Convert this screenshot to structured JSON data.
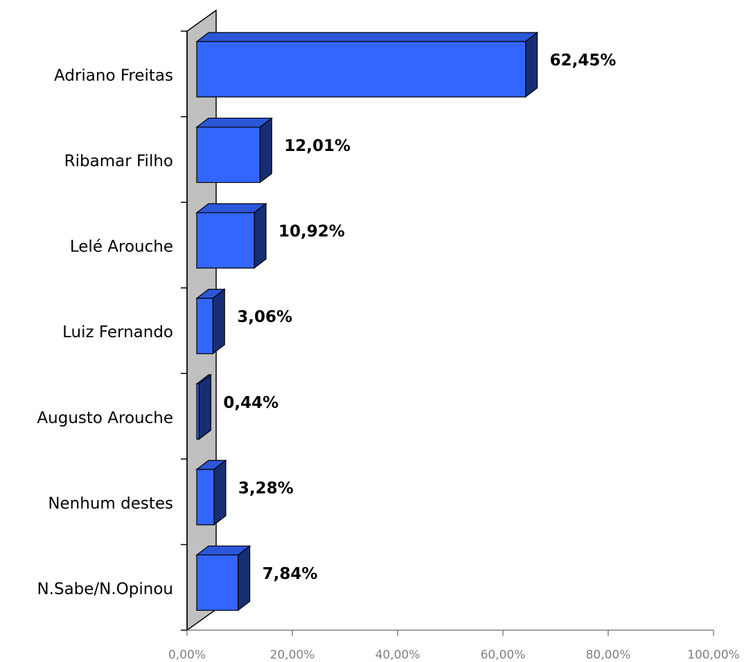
{
  "chart_data": {
    "type": "bar",
    "orientation": "horizontal",
    "color": "#3366ff",
    "categories": [
      "Adriano Freitas",
      "Ribamar Filho",
      "Lelé Arouche",
      "Luiz Fernando",
      "Augusto Arouche",
      "Nenhum destes",
      "N.Sabe/N.Opinou"
    ],
    "values": [
      62.45,
      12.01,
      10.92,
      3.06,
      0.44,
      3.28,
      7.84
    ],
    "value_labels": [
      "62,45%",
      "12,01%",
      "10,92%",
      "3,06%",
      "0,44%",
      "3,28%",
      "7,84%"
    ],
    "xlim": [
      0,
      100
    ],
    "xticks": [
      {
        "value": 0,
        "label": "0,00%"
      },
      {
        "value": 20,
        "label": "20,00%"
      },
      {
        "value": 40,
        "label": "40,00%"
      },
      {
        "value": 60,
        "label": "60,00%"
      },
      {
        "value": 80,
        "label": "80,00%"
      },
      {
        "value": 100,
        "label": "100,00%"
      }
    ]
  }
}
